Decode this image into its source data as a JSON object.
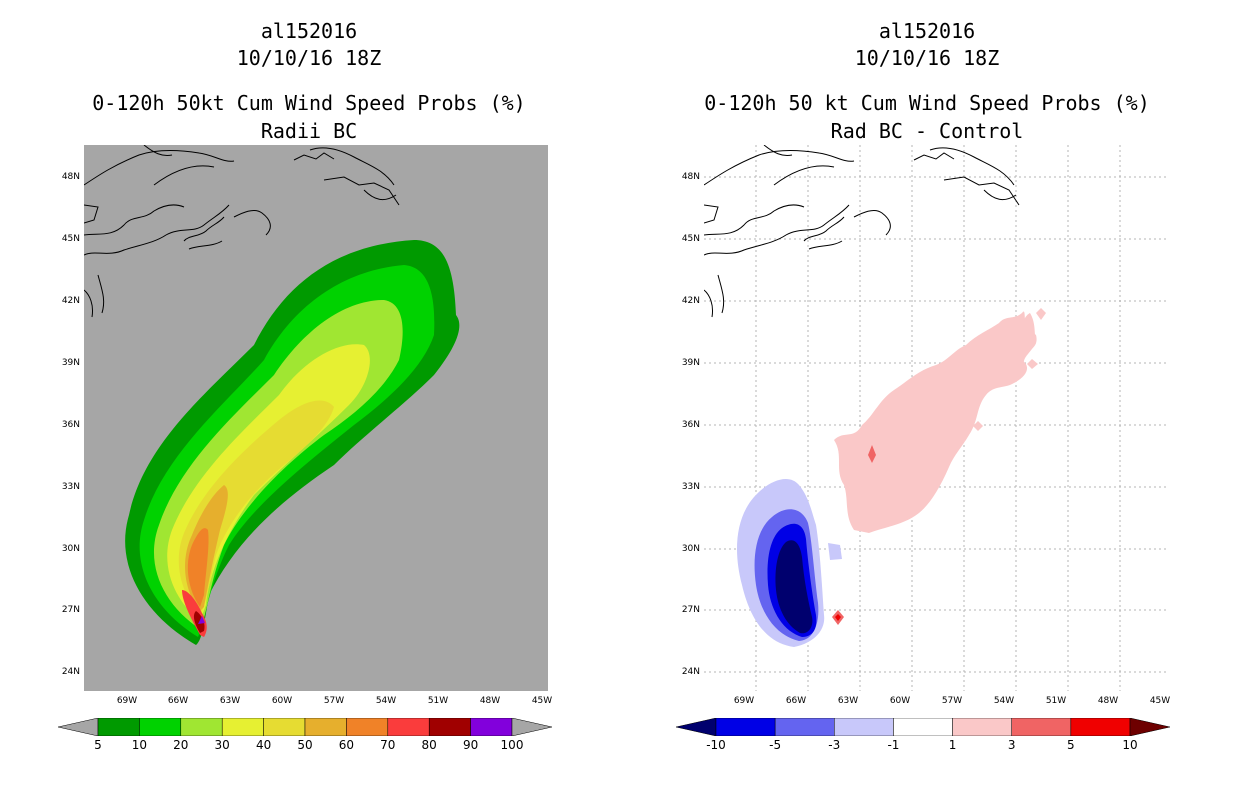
{
  "left_panel": {
    "storm_id": "al152016",
    "datetime": "10/10/16 18Z",
    "product": "0-120h 50kt Cum Wind Speed Probs (%)",
    "subtitle": "Radii BC",
    "lat_labels": [
      "48N",
      "45N",
      "42N",
      "39N",
      "36N",
      "33N",
      "30N",
      "27N",
      "24N"
    ],
    "lon_labels": [
      "69W",
      "66W",
      "63W",
      "60W",
      "57W",
      "54W",
      "51W",
      "48W",
      "45W"
    ],
    "colorbar": {
      "labels": [
        "5",
        "10",
        "20",
        "30",
        "40",
        "50",
        "60",
        "70",
        "80",
        "90",
        "100"
      ],
      "colors": [
        "#009a00",
        "#00d200",
        "#a0e632",
        "#e6f032",
        "#e6dc32",
        "#e6af2d",
        "#f08228",
        "#fa3c3c",
        "#a00000",
        "#8200dc"
      ],
      "under_color": "#a6a6a6",
      "over_color": "#a6a6a6"
    },
    "background_color": "#a6a6a6"
  },
  "right_panel": {
    "storm_id": "al152016",
    "datetime": "10/10/16 18Z",
    "product": "0-120h 50 kt Cum Wind Speed Probs (%)",
    "subtitle": "Rad BC - Control",
    "lat_labels": [
      "48N",
      "45N",
      "42N",
      "39N",
      "36N",
      "33N",
      "30N",
      "27N",
      "24N"
    ],
    "lon_labels": [
      "69W",
      "66W",
      "63W",
      "60W",
      "57W",
      "54W",
      "51W",
      "48W",
      "45W"
    ],
    "colorbar": {
      "labels": [
        "-10",
        "-5",
        "-3",
        "-1",
        "1",
        "3",
        "5",
        "10"
      ],
      "colors": [
        "#0000e6",
        "#6464f0",
        "#c8c8fa",
        "#ffffff",
        "#fac8c8",
        "#f06464",
        "#f00000"
      ],
      "under_color": "#00006e",
      "over_color": "#6e0000"
    },
    "background_color": "#ffffff"
  }
}
